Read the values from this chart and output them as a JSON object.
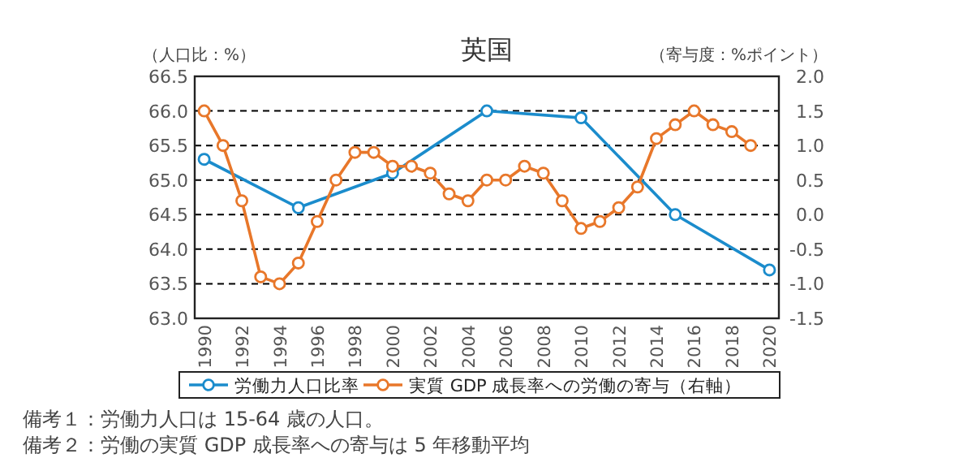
{
  "chart_data": {
    "type": "line",
    "title": "英国",
    "ylabel": "（人口比：%）",
    "y2label": "（寄与度：%ポイント）",
    "xlim": [
      1989.5,
      2020.5
    ],
    "xticks": [
      1990,
      1992,
      1994,
      1996,
      1998,
      2000,
      2002,
      2004,
      2006,
      2008,
      2010,
      2012,
      2014,
      2016,
      2018,
      2020
    ],
    "ylim": [
      63.0,
      66.5
    ],
    "yticks": [
      {
        "value": 63.0,
        "label": "63.0"
      },
      {
        "value": 63.5,
        "label": "63.5"
      },
      {
        "value": 64.0,
        "label": "64.0"
      },
      {
        "value": 64.5,
        "label": "64.5"
      },
      {
        "value": 65.0,
        "label": "65.0"
      },
      {
        "value": 65.5,
        "label": "65.5"
      },
      {
        "value": 66.0,
        "label": "66.0"
      },
      {
        "value": 66.5,
        "label": "66.5"
      }
    ],
    "y2lim": [
      -1.5,
      2.0
    ],
    "y2ticks": [
      {
        "value": -1.5,
        "label": "-1.5"
      },
      {
        "value": -1.0,
        "label": "-1.0"
      },
      {
        "value": -0.5,
        "label": "-0.5"
      },
      {
        "value": 0,
        "label": "0.0"
      },
      {
        "value": 0.5,
        "label": "0.5"
      },
      {
        "value": 1.0,
        "label": "1.0"
      },
      {
        "value": 1.5,
        "label": "1.5"
      },
      {
        "value": 2.0,
        "label": "2.0"
      }
    ],
    "grid": "y",
    "legend": "bottom",
    "marker": "circle",
    "line_style": "solid",
    "series": [
      {
        "name": "労働力人口比率",
        "color": "#1b8ccc",
        "x": [
          1990,
          1995,
          2000,
          2005,
          2010,
          2015,
          2020
        ],
        "values": [
          65.3,
          64.6,
          65.1,
          66.0,
          65.9,
          64.5,
          63.7
        ]
      },
      {
        "name": "実質 GDP 成長率への労働の寄与（右軸）",
        "color": "#e8772a",
        "axis": "y2",
        "x": [
          1990,
          1991,
          1992,
          1993,
          1994,
          1995,
          1996,
          1997,
          1998,
          1999,
          2000,
          2001,
          2002,
          2003,
          2004,
          2005,
          2006,
          2007,
          2008,
          2009,
          2010,
          2011,
          2012,
          2013,
          2014,
          2015,
          2016,
          2017,
          2018,
          2019
        ],
        "values": [
          1.5,
          1.0,
          0.2,
          -0.9,
          -1.0,
          -0.7,
          -0.1,
          0.5,
          0.9,
          0.9,
          0.7,
          0.7,
          0.6,
          0.3,
          0.2,
          0.5,
          0.5,
          0.7,
          0.6,
          0.2,
          -0.2,
          -0.1,
          0.1,
          0.4,
          1.1,
          1.3,
          1.5,
          1.3,
          1.2,
          1.0
        ]
      }
    ],
    "annotations": [
      "備考１：労働力人口は 15-64 歳の人口。",
      "備考２：労働の実質 GDP 成長率への寄与は 5 年移動平均"
    ]
  }
}
